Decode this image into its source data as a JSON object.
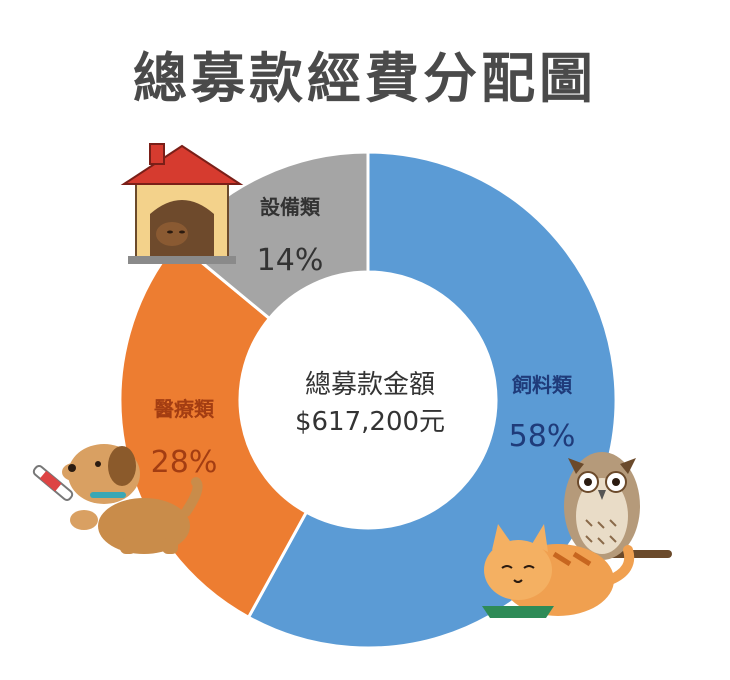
{
  "chart_data": {
    "type": "donut",
    "title": "總募款經費分配圖",
    "center_label": "總募款金額",
    "center_value": "$617,200元",
    "slices": [
      {
        "name": "飼料類",
        "value": 58,
        "display": "58%",
        "color": "#5b9bd5",
        "label_color": "#1f3b7a"
      },
      {
        "name": "醫療類",
        "value": 28,
        "display": "28%",
        "color": "#ed7d31",
        "label_color": "#a33d12"
      },
      {
        "name": "設備類",
        "value": 14,
        "display": "14%",
        "color": "#a5a5a5",
        "label_color": "#333333"
      }
    ]
  },
  "decorations": {
    "doghouse": "doghouse-illustration",
    "dog": "dog-with-syringe-illustration",
    "cat": "cat-eating-illustration",
    "owl": "owl-on-branch-illustration"
  }
}
